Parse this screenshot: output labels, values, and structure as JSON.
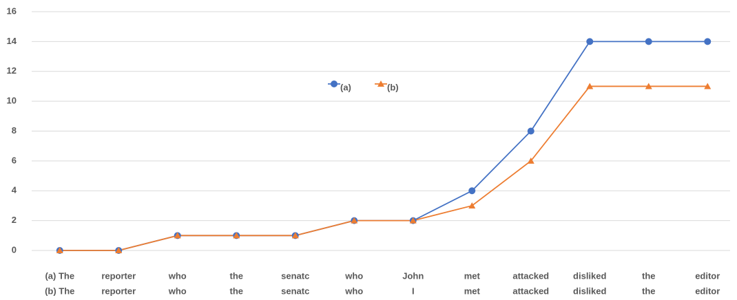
{
  "chart_data": {
    "type": "line",
    "categories": [
      [
        "(a) The",
        "(b) The"
      ],
      [
        "reporter",
        "reporter"
      ],
      [
        "who",
        "who"
      ],
      [
        "the",
        "the"
      ],
      [
        "senatc",
        "senatc"
      ],
      [
        "who",
        "who"
      ],
      [
        "John",
        "I"
      ],
      [
        "met",
        "met"
      ],
      [
        "attacked",
        "attacked"
      ],
      [
        "disliked",
        "disliked"
      ],
      [
        "the",
        "the"
      ],
      [
        "editor",
        "editor"
      ]
    ],
    "series": [
      {
        "name": "(a)",
        "color": "#4472c4",
        "marker": "circle",
        "values": [
          0,
          0,
          1,
          1,
          1,
          2,
          2,
          4,
          8,
          14,
          14,
          14
        ]
      },
      {
        "name": "(b)",
        "color": "#ed7d31",
        "marker": "triangle",
        "values": [
          0,
          0,
          1,
          1,
          1,
          2,
          2,
          3,
          6,
          11,
          11,
          11
        ]
      }
    ],
    "ylim": [
      0,
      16
    ],
    "yticks": [
      0,
      2,
      4,
      6,
      8,
      10,
      12,
      14,
      16
    ],
    "grid": true
  }
}
